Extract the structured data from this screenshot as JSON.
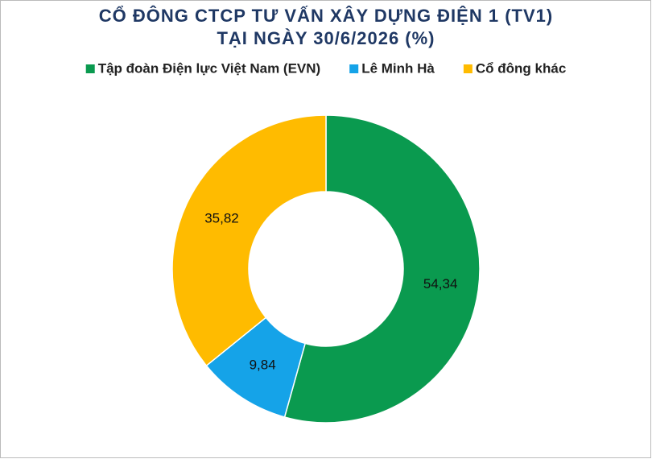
{
  "chart_data": {
    "type": "donut",
    "title": [
      "CỔ ĐÔNG CTCP TƯ VẤN XÂY DỰNG ĐIỆN 1 (TV1)",
      "TẠI NGÀY 30/6/2026 (%)"
    ],
    "categories": [
      "Tập đoàn Điện lực Việt Nam (EVN)",
      "Lê Minh Hà",
      "Cổ đông khác"
    ],
    "values": [
      54.34,
      9.84,
      35.82
    ],
    "value_labels": [
      "54,34",
      "9,84",
      "35,82"
    ],
    "colors": [
      "#0a9a4f",
      "#15a3e8",
      "#ffbb00"
    ],
    "legend": "top"
  }
}
